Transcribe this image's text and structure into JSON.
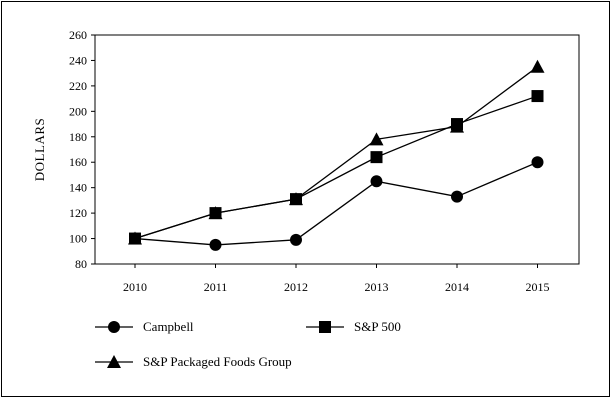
{
  "chart_data": {
    "type": "line",
    "title": "",
    "xlabel": "",
    "ylabel": "DOLLARS",
    "ylim": [
      80,
      260
    ],
    "yticks": [
      80,
      100,
      120,
      140,
      160,
      180,
      200,
      220,
      240,
      260
    ],
    "categories": [
      "2010",
      "2011",
      "2012",
      "2013",
      "2014",
      "2015"
    ],
    "grid": false,
    "legend_position": "bottom",
    "series": [
      {
        "name": "Campbell",
        "marker": "circle",
        "values": [
          100,
          95,
          99,
          145,
          133,
          160
        ]
      },
      {
        "name": "S&P 500",
        "marker": "square",
        "values": [
          100,
          120,
          131,
          164,
          190,
          212
        ]
      },
      {
        "name": "S&P Packaged Foods Group",
        "marker": "triangle",
        "values": [
          100,
          120,
          131,
          178,
          188,
          235
        ]
      }
    ]
  }
}
